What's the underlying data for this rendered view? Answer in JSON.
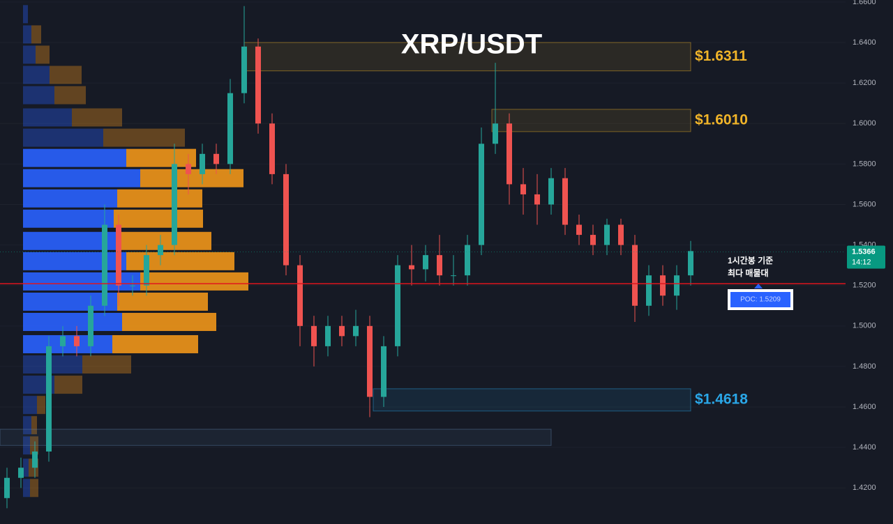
{
  "chart_data": {
    "type": "candlestick",
    "title": "XRP/USDT",
    "categories": [
      null,
      null,
      null,
      null,
      null,
      null,
      null,
      null,
      null,
      null,
      null,
      null,
      null,
      null,
      null,
      null,
      null,
      null,
      null,
      null,
      null,
      null,
      null,
      null,
      null,
      null,
      null,
      null,
      null,
      null,
      null,
      null,
      null,
      null,
      null,
      null,
      null,
      null,
      null,
      null,
      null,
      null,
      null,
      null,
      null,
      null,
      null,
      null,
      null,
      null
    ],
    "open": [
      1.415,
      1.425,
      1.43,
      1.438,
      1.49,
      1.495,
      1.49,
      1.51,
      1.55,
      1.52,
      1.52,
      1.535,
      1.54,
      1.58,
      1.575,
      1.585,
      1.58,
      1.615,
      1.638,
      1.6,
      1.575,
      1.53,
      1.5,
      1.49,
      1.5,
      1.495,
      1.5,
      1.465,
      1.49,
      1.53,
      1.528,
      1.535,
      1.525,
      1.525,
      1.54,
      1.59,
      1.6,
      1.57,
      1.565,
      1.56,
      1.573,
      1.55,
      1.545,
      1.54,
      1.55,
      1.54,
      1.51,
      1.525,
      1.515,
      1.525
    ],
    "high": [
      1.43,
      1.435,
      1.443,
      1.495,
      1.5,
      1.5,
      1.515,
      1.56,
      1.555,
      1.525,
      1.54,
      1.545,
      1.59,
      1.585,
      1.59,
      1.59,
      1.622,
      1.658,
      1.642,
      1.605,
      1.58,
      1.535,
      1.505,
      1.505,
      1.505,
      1.508,
      1.505,
      1.495,
      1.535,
      1.54,
      1.54,
      1.545,
      1.535,
      1.545,
      1.598,
      1.63,
      1.605,
      1.578,
      1.575,
      1.578,
      1.578,
      1.555,
      1.55,
      1.553,
      1.553,
      1.545,
      1.53,
      1.53,
      1.53,
      1.542
    ],
    "low": [
      1.41,
      1.42,
      1.425,
      1.433,
      1.485,
      1.485,
      1.485,
      1.505,
      1.51,
      1.515,
      1.515,
      1.53,
      1.535,
      1.565,
      1.57,
      1.575,
      1.575,
      1.61,
      1.595,
      1.57,
      1.525,
      1.49,
      1.48,
      1.485,
      1.49,
      1.49,
      1.455,
      1.46,
      1.485,
      1.52,
      1.522,
      1.52,
      1.52,
      1.52,
      1.535,
      1.585,
      1.56,
      1.555,
      1.55,
      1.555,
      1.545,
      1.54,
      1.535,
      1.535,
      1.535,
      1.502,
      1.505,
      1.51,
      1.508,
      1.52
    ],
    "close": [
      1.425,
      1.43,
      1.438,
      1.49,
      1.495,
      1.49,
      1.51,
      1.55,
      1.52,
      1.52,
      1.535,
      1.54,
      1.58,
      1.575,
      1.585,
      1.58,
      1.615,
      1.638,
      1.6,
      1.575,
      1.53,
      1.5,
      1.49,
      1.5,
      1.495,
      1.5,
      1.465,
      1.49,
      1.53,
      1.528,
      1.535,
      1.525,
      1.525,
      1.54,
      1.59,
      1.6,
      1.57,
      1.565,
      1.56,
      1.573,
      1.55,
      1.545,
      1.54,
      1.55,
      1.54,
      1.51,
      1.525,
      1.515,
      1.525,
      1.537
    ],
    "up_color": "#26a69a",
    "down_color": "#ef5350",
    "ylim": [
      1.4022,
      1.661
    ],
    "yticks": [
      {
        "value": 1.42,
        "label": "1.4200"
      },
      {
        "value": 1.44,
        "label": "1.4400"
      },
      {
        "value": 1.46,
        "label": "1.4600"
      },
      {
        "value": 1.48,
        "label": "1.4800"
      },
      {
        "value": 1.5,
        "label": "1.5000"
      },
      {
        "value": 1.52,
        "label": "1.5200"
      },
      {
        "value": 1.54,
        "label": "1.5400"
      },
      {
        "value": 1.56,
        "label": "1.5600"
      },
      {
        "value": 1.58,
        "label": "1.5800"
      },
      {
        "value": 1.6,
        "label": "1.6000"
      },
      {
        "value": 1.62,
        "label": "1.6200"
      },
      {
        "value": 1.64,
        "label": "1.6400"
      },
      {
        "value": 1.66,
        "label": "1.6600"
      }
    ],
    "grid": true,
    "zones": [
      {
        "label": "$1.6311",
        "low": 1.626,
        "high": 1.64,
        "color": "#f0b429"
      },
      {
        "label": "$1.6010",
        "low": 1.596,
        "high": 1.607,
        "color": "#f0b429"
      },
      {
        "label": "$1.4618",
        "low": 1.458,
        "high": 1.469,
        "color": "#2aa7e8"
      },
      {
        "label": null,
        "low": 1.441,
        "high": 1.449,
        "color": "#5d7fa8"
      }
    ],
    "volume_profile": {
      "prices": [
        1.654,
        1.644,
        1.634,
        1.624,
        1.614,
        1.603,
        1.593,
        1.583,
        1.573,
        1.563,
        1.553,
        1.542,
        1.532,
        1.522,
        1.512,
        1.502,
        1.491,
        1.481,
        1.471,
        1.461,
        1.451,
        1.441,
        1.43,
        1.42
      ],
      "buy": [
        7,
        12,
        18,
        38,
        45,
        70,
        115,
        148,
        168,
        135,
        130,
        135,
        148,
        168,
        135,
        142,
        128,
        85,
        45,
        20,
        12,
        10,
        8,
        10
      ],
      "sell": [
        0,
        14,
        20,
        46,
        45,
        72,
        117,
        100,
        148,
        122,
        128,
        135,
        155,
        155,
        130,
        135,
        123,
        70,
        40,
        12,
        8,
        12,
        14,
        12
      ],
      "buy_color": "#2962ff",
      "sell_color": "#f0961a"
    },
    "poc": {
      "value": 1.5209,
      "label": "POC: 1.5209",
      "color": "#e0161e"
    },
    "annotation": [
      "1시간봉 기준",
      "최다 매물대"
    ],
    "last_price": {
      "value": 1.5366,
      "label": "1.5366",
      "timer": "14:12",
      "color": "#089981"
    }
  }
}
